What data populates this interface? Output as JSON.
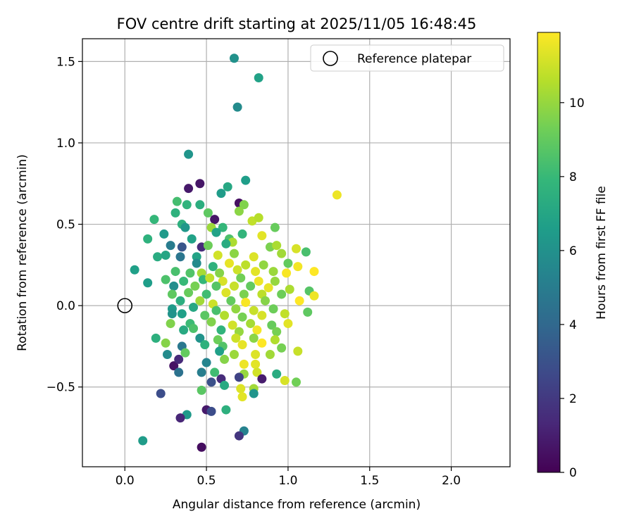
{
  "chart_data": {
    "type": "scatter",
    "title": "FOV centre drift starting at 2025/11/05 16:48:45",
    "xlabel": "Angular distance from reference (arcmin)",
    "ylabel": "Rotation from reference (arcmin)",
    "xlim": [
      -0.26,
      2.36
    ],
    "ylim": [
      -0.99,
      1.64
    ],
    "x_ticks": [
      0.0,
      0.5,
      1.0,
      1.5,
      2.0
    ],
    "x_tick_labels": [
      "0.0",
      "0.5",
      "1.0",
      "1.5",
      "2.0"
    ],
    "y_ticks": [
      -0.5,
      0.0,
      0.5,
      1.0,
      1.5
    ],
    "y_tick_labels": [
      "−0.5",
      "0.0",
      "0.5",
      "1.0",
      "1.5"
    ],
    "grid": true,
    "legend": {
      "position": "top-right",
      "entries": [
        "Reference platepar"
      ]
    },
    "reference_point": {
      "x": 0.0,
      "y": 0.0,
      "label": "Reference platepar"
    },
    "colorbar": {
      "label": "Hours from first FF file",
      "colormap": "viridis",
      "range": [
        0,
        11.9
      ],
      "ticks": [
        0,
        2,
        4,
        6,
        8,
        10
      ],
      "tick_labels": [
        "0",
        "2",
        "4",
        "6",
        "8",
        "10"
      ],
      "stops": [
        "#440154",
        "#482878",
        "#3e4989",
        "#31688e",
        "#26828e",
        "#1f9e89",
        "#35b779",
        "#6ece58",
        "#b5de2b",
        "#fde725"
      ]
    },
    "points": [
      {
        "x": 0.67,
        "y": 1.52,
        "h": 6.0
      },
      {
        "x": 0.82,
        "y": 1.4,
        "h": 6.8
      },
      {
        "x": 0.69,
        "y": 1.22,
        "h": 5.7
      },
      {
        "x": 1.3,
        "y": 0.68,
        "h": 11.6
      },
      {
        "x": 0.39,
        "y": 0.93,
        "h": 6.2
      },
      {
        "x": 0.39,
        "y": 0.72,
        "h": 0.8
      },
      {
        "x": 0.46,
        "y": 0.75,
        "h": 0.7
      },
      {
        "x": 0.74,
        "y": 0.77,
        "h": 6.6
      },
      {
        "x": 0.63,
        "y": 0.73,
        "h": 7.1
      },
      {
        "x": 0.59,
        "y": 0.69,
        "h": 6.5
      },
      {
        "x": 0.7,
        "y": 0.63,
        "h": 0.5
      },
      {
        "x": 0.32,
        "y": 0.64,
        "h": 8.3
      },
      {
        "x": 0.38,
        "y": 0.62,
        "h": 7.7
      },
      {
        "x": 0.46,
        "y": 0.62,
        "h": 7.4
      },
      {
        "x": 0.73,
        "y": 0.62,
        "h": 9.6
      },
      {
        "x": 0.31,
        "y": 0.57,
        "h": 7.6
      },
      {
        "x": 0.51,
        "y": 0.57,
        "h": 8.9
      },
      {
        "x": 0.18,
        "y": 0.53,
        "h": 7.9
      },
      {
        "x": 0.55,
        "y": 0.53,
        "h": 0.7
      },
      {
        "x": 0.7,
        "y": 0.58,
        "h": 9.8
      },
      {
        "x": 0.78,
        "y": 0.52,
        "h": 10.8
      },
      {
        "x": 0.82,
        "y": 0.54,
        "h": 10.6
      },
      {
        "x": 0.35,
        "y": 0.5,
        "h": 7.5
      },
      {
        "x": 0.37,
        "y": 0.48,
        "h": 6.3
      },
      {
        "x": 0.6,
        "y": 0.48,
        "h": 7.9
      },
      {
        "x": 0.53,
        "y": 0.48,
        "h": 10.1
      },
      {
        "x": 0.92,
        "y": 0.48,
        "h": 9.1
      },
      {
        "x": 0.56,
        "y": 0.45,
        "h": 6.8
      },
      {
        "x": 0.14,
        "y": 0.41,
        "h": 7.6
      },
      {
        "x": 0.24,
        "y": 0.44,
        "h": 6.4
      },
      {
        "x": 0.41,
        "y": 0.41,
        "h": 6.8
      },
      {
        "x": 0.72,
        "y": 0.44,
        "h": 7.8
      },
      {
        "x": 0.84,
        "y": 0.43,
        "h": 11.4
      },
      {
        "x": 0.64,
        "y": 0.41,
        "h": 8.5
      },
      {
        "x": 0.66,
        "y": 0.39,
        "h": 10.4
      },
      {
        "x": 0.28,
        "y": 0.37,
        "h": 5.0
      },
      {
        "x": 0.35,
        "y": 0.36,
        "h": 3.2
      },
      {
        "x": 0.47,
        "y": 0.36,
        "h": 1.5
      },
      {
        "x": 0.51,
        "y": 0.37,
        "h": 9.2
      },
      {
        "x": 0.62,
        "y": 0.38,
        "h": 7.3
      },
      {
        "x": 0.89,
        "y": 0.36,
        "h": 9.5
      },
      {
        "x": 0.93,
        "y": 0.37,
        "h": 10.4
      },
      {
        "x": 1.05,
        "y": 0.35,
        "h": 11.2
      },
      {
        "x": 1.11,
        "y": 0.33,
        "h": 8.4
      },
      {
        "x": 0.2,
        "y": 0.3,
        "h": 7.3
      },
      {
        "x": 0.25,
        "y": 0.31,
        "h": 7.0
      },
      {
        "x": 0.34,
        "y": 0.3,
        "h": 4.7
      },
      {
        "x": 0.44,
        "y": 0.3,
        "h": 6.9
      },
      {
        "x": 0.57,
        "y": 0.31,
        "h": 11.1
      },
      {
        "x": 0.67,
        "y": 0.32,
        "h": 9.8
      },
      {
        "x": 0.79,
        "y": 0.3,
        "h": 11.3
      },
      {
        "x": 0.96,
        "y": 0.32,
        "h": 10.2
      },
      {
        "x": 0.06,
        "y": 0.22,
        "h": 6.7
      },
      {
        "x": 0.44,
        "y": 0.26,
        "h": 5.7
      },
      {
        "x": 0.54,
        "y": 0.24,
        "h": 7.6
      },
      {
        "x": 0.64,
        "y": 0.26,
        "h": 11.5
      },
      {
        "x": 0.74,
        "y": 0.25,
        "h": 10.7
      },
      {
        "x": 0.85,
        "y": 0.25,
        "h": 9.9
      },
      {
        "x": 1.0,
        "y": 0.26,
        "h": 9.0
      },
      {
        "x": 1.06,
        "y": 0.24,
        "h": 11.7
      },
      {
        "x": 0.31,
        "y": 0.21,
        "h": 8.4
      },
      {
        "x": 0.4,
        "y": 0.2,
        "h": 8.6
      },
      {
        "x": 0.47,
        "y": 0.2,
        "h": 10.3
      },
      {
        "x": 0.58,
        "y": 0.2,
        "h": 9.7
      },
      {
        "x": 0.69,
        "y": 0.22,
        "h": 11.0
      },
      {
        "x": 0.8,
        "y": 0.21,
        "h": 11.4
      },
      {
        "x": 0.91,
        "y": 0.21,
        "h": 10.1
      },
      {
        "x": 0.99,
        "y": 0.2,
        "h": 11.8
      },
      {
        "x": 1.16,
        "y": 0.21,
        "h": 11.9
      },
      {
        "x": 0.25,
        "y": 0.16,
        "h": 8.5
      },
      {
        "x": 0.36,
        "y": 0.15,
        "h": 8.0
      },
      {
        "x": 0.48,
        "y": 0.16,
        "h": 7.9
      },
      {
        "x": 0.52,
        "y": 0.17,
        "h": 10.8
      },
      {
        "x": 0.6,
        "y": 0.15,
        "h": 11.2
      },
      {
        "x": 0.71,
        "y": 0.17,
        "h": 9.3
      },
      {
        "x": 0.82,
        "y": 0.15,
        "h": 11.6
      },
      {
        "x": 0.92,
        "y": 0.15,
        "h": 10.0
      },
      {
        "x": 0.14,
        "y": 0.14,
        "h": 6.6
      },
      {
        "x": 0.3,
        "y": 0.12,
        "h": 5.9
      },
      {
        "x": 0.43,
        "y": 0.12,
        "h": 9.4
      },
      {
        "x": 0.56,
        "y": 0.12,
        "h": 8.7
      },
      {
        "x": 0.67,
        "y": 0.12,
        "h": 10.9
      },
      {
        "x": 0.77,
        "y": 0.12,
        "h": 9.0
      },
      {
        "x": 0.88,
        "y": 0.11,
        "h": 11.5
      },
      {
        "x": 1.01,
        "y": 0.1,
        "h": 10.4
      },
      {
        "x": 1.13,
        "y": 0.09,
        "h": 8.7
      },
      {
        "x": 0.29,
        "y": 0.07,
        "h": 8.9
      },
      {
        "x": 0.39,
        "y": 0.08,
        "h": 9.1
      },
      {
        "x": 0.5,
        "y": 0.07,
        "h": 8.2
      },
      {
        "x": 0.62,
        "y": 0.08,
        "h": 11.3
      },
      {
        "x": 0.73,
        "y": 0.07,
        "h": 9.5
      },
      {
        "x": 0.84,
        "y": 0.07,
        "h": 10.7
      },
      {
        "x": 0.96,
        "y": 0.07,
        "h": 9.2
      },
      {
        "x": 1.16,
        "y": 0.06,
        "h": 11.6
      },
      {
        "x": 0.34,
        "y": 0.03,
        "h": 7.4
      },
      {
        "x": 0.46,
        "y": 0.03,
        "h": 10.2
      },
      {
        "x": 0.54,
        "y": 0.01,
        "h": 11.0
      },
      {
        "x": 0.65,
        "y": 0.03,
        "h": 9.0
      },
      {
        "x": 0.74,
        "y": 0.02,
        "h": 11.8
      },
      {
        "x": 0.86,
        "y": 0.03,
        "h": 9.7
      },
      {
        "x": 1.07,
        "y": 0.03,
        "h": 11.9
      },
      {
        "x": 0.29,
        "y": -0.02,
        "h": 6.4
      },
      {
        "x": 0.42,
        "y": -0.01,
        "h": 7.1
      },
      {
        "x": 0.56,
        "y": -0.03,
        "h": 8.4
      },
      {
        "x": 0.68,
        "y": -0.02,
        "h": 9.9
      },
      {
        "x": 0.79,
        "y": -0.03,
        "h": 10.9
      },
      {
        "x": 0.91,
        "y": -0.02,
        "h": 9.2
      },
      {
        "x": 1.12,
        "y": -0.04,
        "h": 8.9
      },
      {
        "x": 0.29,
        "y": -0.05,
        "h": 6.1
      },
      {
        "x": 0.35,
        "y": -0.05,
        "h": 6.7
      },
      {
        "x": 0.49,
        "y": -0.06,
        "h": 8.8
      },
      {
        "x": 0.61,
        "y": -0.06,
        "h": 10.5
      },
      {
        "x": 0.72,
        "y": -0.07,
        "h": 9.4
      },
      {
        "x": 0.84,
        "y": -0.06,
        "h": 11.2
      },
      {
        "x": 0.98,
        "y": -0.05,
        "h": 10.8
      },
      {
        "x": 0.4,
        "y": -0.11,
        "h": 8.1
      },
      {
        "x": 0.53,
        "y": -0.1,
        "h": 9.6
      },
      {
        "x": 0.66,
        "y": -0.12,
        "h": 11.1
      },
      {
        "x": 0.77,
        "y": -0.11,
        "h": 10.3
      },
      {
        "x": 0.9,
        "y": -0.12,
        "h": 9.1
      },
      {
        "x": 1.0,
        "y": -0.11,
        "h": 11.4
      },
      {
        "x": 0.28,
        "y": -0.11,
        "h": 9.6
      },
      {
        "x": 0.36,
        "y": -0.15,
        "h": 7.2
      },
      {
        "x": 0.42,
        "y": -0.14,
        "h": 8.5
      },
      {
        "x": 0.59,
        "y": -0.15,
        "h": 7.7
      },
      {
        "x": 0.7,
        "y": -0.16,
        "h": 10.0
      },
      {
        "x": 0.81,
        "y": -0.15,
        "h": 11.7
      },
      {
        "x": 0.93,
        "y": -0.16,
        "h": 9.4
      },
      {
        "x": 0.19,
        "y": -0.2,
        "h": 7.5
      },
      {
        "x": 0.46,
        "y": -0.2,
        "h": 6.1
      },
      {
        "x": 0.57,
        "y": -0.21,
        "h": 9.2
      },
      {
        "x": 0.68,
        "y": -0.2,
        "h": 11.0
      },
      {
        "x": 0.79,
        "y": -0.2,
        "h": 9.8
      },
      {
        "x": 0.92,
        "y": -0.21,
        "h": 10.5
      },
      {
        "x": 0.25,
        "y": -0.23,
        "h": 9.7
      },
      {
        "x": 0.35,
        "y": -0.25,
        "h": 4.8
      },
      {
        "x": 0.49,
        "y": -0.24,
        "h": 7.6
      },
      {
        "x": 0.6,
        "y": -0.25,
        "h": 8.6
      },
      {
        "x": 0.72,
        "y": -0.24,
        "h": 11.5
      },
      {
        "x": 0.84,
        "y": -0.23,
        "h": 11.9
      },
      {
        "x": 0.96,
        "y": -0.26,
        "h": 9.4
      },
      {
        "x": 1.06,
        "y": -0.28,
        "h": 10.9
      },
      {
        "x": 0.26,
        "y": -0.3,
        "h": 5.7
      },
      {
        "x": 0.37,
        "y": -0.29,
        "h": 9.0
      },
      {
        "x": 0.58,
        "y": -0.28,
        "h": 6.7
      },
      {
        "x": 0.67,
        "y": -0.3,
        "h": 10.1
      },
      {
        "x": 0.8,
        "y": -0.3,
        "h": 11.3
      },
      {
        "x": 0.89,
        "y": -0.3,
        "h": 10.2
      },
      {
        "x": 0.3,
        "y": -0.37,
        "h": 0.6
      },
      {
        "x": 0.33,
        "y": -0.33,
        "h": 1.4
      },
      {
        "x": 0.5,
        "y": -0.35,
        "h": 5.4
      },
      {
        "x": 0.61,
        "y": -0.33,
        "h": 9.7
      },
      {
        "x": 0.73,
        "y": -0.36,
        "h": 11.6
      },
      {
        "x": 0.8,
        "y": -0.36,
        "h": 11.4
      },
      {
        "x": 0.33,
        "y": -0.41,
        "h": 4.5
      },
      {
        "x": 0.47,
        "y": -0.41,
        "h": 5.1
      },
      {
        "x": 0.55,
        "y": -0.41,
        "h": 8.2
      },
      {
        "x": 0.73,
        "y": -0.42,
        "h": 10.0
      },
      {
        "x": 0.81,
        "y": -0.41,
        "h": 11.1
      },
      {
        "x": 0.93,
        "y": -0.42,
        "h": 7.3
      },
      {
        "x": 0.53,
        "y": -0.47,
        "h": 3.0
      },
      {
        "x": 0.59,
        "y": -0.45,
        "h": 1.5
      },
      {
        "x": 0.7,
        "y": -0.44,
        "h": 2.4
      },
      {
        "x": 0.84,
        "y": -0.45,
        "h": 0.9
      },
      {
        "x": 0.98,
        "y": -0.46,
        "h": 11.2
      },
      {
        "x": 1.05,
        "y": -0.47,
        "h": 9.3
      },
      {
        "x": 0.47,
        "y": -0.52,
        "h": 8.8
      },
      {
        "x": 0.61,
        "y": -0.49,
        "h": 7.2
      },
      {
        "x": 0.71,
        "y": -0.51,
        "h": 11.3
      },
      {
        "x": 0.79,
        "y": -0.51,
        "h": 10.2
      },
      {
        "x": 0.22,
        "y": -0.54,
        "h": 2.8
      },
      {
        "x": 0.72,
        "y": -0.56,
        "h": 11.4
      },
      {
        "x": 0.79,
        "y": -0.54,
        "h": 6.2
      },
      {
        "x": 0.38,
        "y": -0.67,
        "h": 6.4
      },
      {
        "x": 0.34,
        "y": -0.69,
        "h": 1.3
      },
      {
        "x": 0.5,
        "y": -0.64,
        "h": 0.8
      },
      {
        "x": 0.53,
        "y": -0.65,
        "h": 2.8
      },
      {
        "x": 0.62,
        "y": -0.64,
        "h": 7.5
      },
      {
        "x": 0.11,
        "y": -0.83,
        "h": 6.5
      },
      {
        "x": 0.73,
        "y": -0.77,
        "h": 5.3
      },
      {
        "x": 0.7,
        "y": -0.8,
        "h": 1.9
      },
      {
        "x": 0.47,
        "y": -0.87,
        "h": 0.4
      }
    ]
  }
}
